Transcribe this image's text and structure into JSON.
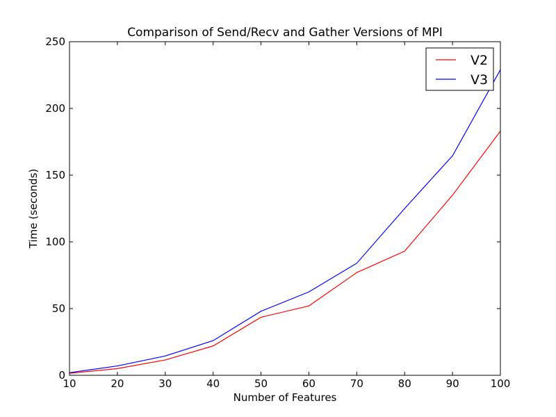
{
  "chart_data": {
    "type": "line",
    "title": "Comparison of Send/Recv and Gather Versions of MPI",
    "xlabel": "Number of Features",
    "ylabel": "Time (seconds)",
    "xlim": [
      10,
      100
    ],
    "ylim": [
      0,
      250
    ],
    "xticks": [
      10,
      20,
      30,
      40,
      50,
      60,
      70,
      80,
      90,
      100
    ],
    "yticks": [
      0,
      50,
      100,
      150,
      200,
      250
    ],
    "grid": false,
    "legend_position": "top-right",
    "x": [
      10,
      20,
      30,
      40,
      50,
      60,
      70,
      80,
      90,
      100
    ],
    "series": [
      {
        "name": "V2",
        "color": "#ff0000",
        "values": [
          1.5,
          5,
          11.5,
          22,
          43.5,
          52,
          77,
          93,
          135,
          183
        ]
      },
      {
        "name": "V3",
        "color": "#0000ff",
        "values": [
          2,
          7,
          14.5,
          26,
          48,
          62.5,
          84,
          125,
          164.5,
          229
        ]
      }
    ]
  }
}
